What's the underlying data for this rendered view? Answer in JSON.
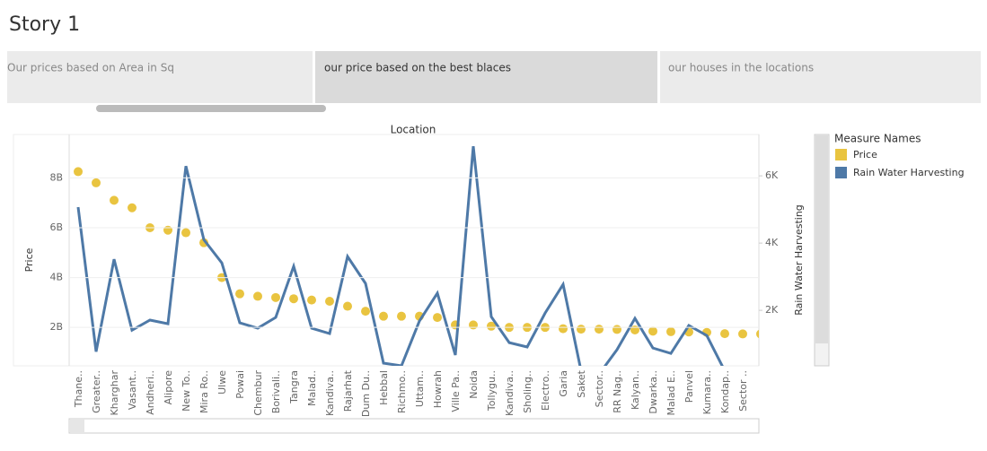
{
  "story_title": "Story 1",
  "tabs": [
    "Our prices based on Area in Sq",
    "our price based on the best blaces",
    "our houses in the locations"
  ],
  "chart_data": {
    "type": "dual-axis",
    "title": "Location",
    "y_label": "Price",
    "y2_label": "Rain Water Harvesting",
    "legend_title": "Measure Names",
    "categories": [
      "Thane..",
      "Greater..",
      "Kharghar",
      "Vasant..",
      "Andheri..",
      "Alipore",
      "New To..",
      "Mira Ro..",
      "Ulwe",
      "Powai",
      "Chembur",
      "Borivali..",
      "Tangra",
      "Malad..",
      "Kandiva..",
      "Rajarhat",
      "Dum Du..",
      "Hebbal",
      "Richmo..",
      "Uttam..",
      "Howrah",
      "Ville Pa..",
      "Noida",
      "Tollygu..",
      "Kandiva..",
      "Sholing..",
      "Electro..",
      "Garia",
      "Saket",
      "Sector..",
      "RR Nag..",
      "Kalyan..",
      "Dwarka..",
      "Malad E..",
      "Panvel",
      "Kumara..",
      "Kondap..",
      "Sector ..",
      null
    ],
    "series": [
      {
        "name": "Price",
        "type": "scatter",
        "color": "#e9c440",
        "values": [
          8250000000,
          7800000000,
          7100000000,
          6800000000,
          6000000000,
          5900000000,
          5800000000,
          5400000000,
          4000000000,
          3350000000,
          3250000000,
          3200000000,
          3150000000,
          3100000000,
          3050000000,
          2850000000,
          2650000000,
          2450000000,
          2450000000,
          2450000000,
          2400000000,
          2100000000,
          2100000000,
          2050000000,
          2000000000,
          2000000000,
          2000000000,
          1950000000,
          1930000000,
          1930000000,
          1920000000,
          1900000000,
          1850000000,
          1830000000,
          1820000000,
          1800000000,
          1750000000,
          1740000000,
          1740000000
        ]
      },
      {
        "name": "Rain Water Harvesting",
        "type": "line",
        "axis": "y2",
        "color": "#4e79a7",
        "values": [
          5070,
          770,
          3520,
          1410,
          1710,
          1600,
          6290,
          4100,
          3410,
          1630,
          1470,
          1790,
          3310,
          1470,
          1310,
          3600,
          2800,
          430,
          350,
          1680,
          2510,
          670,
          6880,
          1810,
          1040,
          910,
          1920,
          2770,
          200,
          100,
          830,
          1760,
          880,
          720,
          1550,
          1250,
          200,
          100,
          null
        ]
      }
    ],
    "ylim": [
      460000000,
      9740000000
    ],
    "yticks": [
      {
        "value": 2000000000,
        "label": "2B"
      },
      {
        "value": 4000000000,
        "label": "4B"
      },
      {
        "value": 6000000000,
        "label": "6B"
      },
      {
        "value": 8000000000,
        "label": "8B"
      }
    ],
    "y2lim": [
      350,
      7230
    ],
    "y2ticks": [
      {
        "value": 2000,
        "label": "2K"
      },
      {
        "value": 4000,
        "label": "4K"
      },
      {
        "value": 6000,
        "label": "6K"
      }
    ],
    "grid": true
  }
}
